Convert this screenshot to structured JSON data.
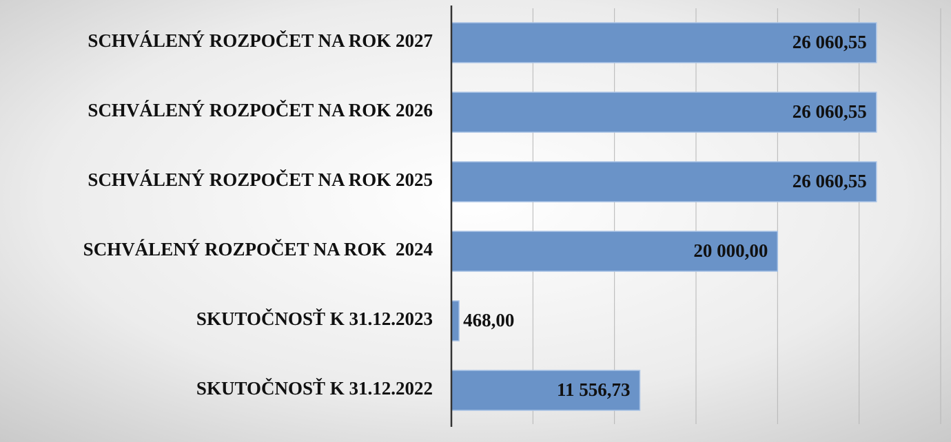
{
  "chart_data": {
    "type": "bar",
    "orientation": "horizontal",
    "categories": [
      "SCHVÁLENÝ ROZPOČET NA ROK 2027",
      "SCHVÁLENÝ ROZPOČET NA ROK 2026",
      "SCHVÁLENÝ ROZPOČET NA ROK 2025",
      "SCHVÁLENÝ ROZPOČET NA ROK  2024",
      "SKUTOČNOSŤ K 31.12.2023",
      "SKUTOČNOSŤ K 31.12.2022"
    ],
    "values": [
      26060.55,
      26060.55,
      26060.55,
      20000,
      468,
      11556.73
    ],
    "value_labels": [
      "26 060,55",
      "26 060,55",
      "26 060,55",
      "20 000,00",
      "468,00",
      "11 556,73"
    ],
    "color": "#6a93c8",
    "xlim": [
      0,
      30000
    ],
    "xticks": [
      0,
      5000,
      10000,
      15000,
      20000,
      25000,
      30000
    ],
    "grid": true
  }
}
